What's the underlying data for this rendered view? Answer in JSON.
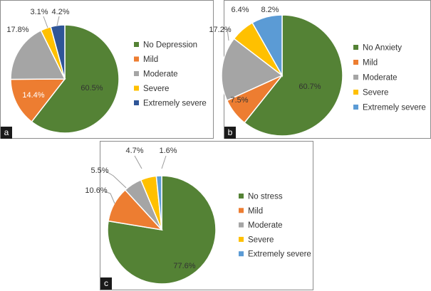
{
  "colors": {
    "green": "#548235",
    "orange": "#ED7D31",
    "gray": "#A5A5A5",
    "yellow": "#FFC000",
    "navy": "#2F5597",
    "lightblue": "#5B9BD5"
  },
  "chart_data": [
    {
      "type": "pie",
      "panel_label": "a",
      "legend_position": "right",
      "categories": [
        "No Depression",
        "Mild",
        "Moderate",
        "Severe",
        "Extremely severe"
      ],
      "values": [
        60.5,
        14.4,
        17.8,
        3.1,
        4.2
      ],
      "data_labels": [
        "60.5%",
        "14.4%",
        "17.8%",
        "3.1%",
        "4.2%"
      ],
      "colors": [
        "#548235",
        "#ED7D31",
        "#A5A5A5",
        "#FFC000",
        "#2F5597"
      ]
    },
    {
      "type": "pie",
      "panel_label": "b",
      "legend_position": "right",
      "categories": [
        "No Anxiety",
        "Mild",
        "Moderate",
        "Severe",
        "Extremely severe"
      ],
      "values": [
        60.7,
        7.5,
        17.2,
        6.4,
        8.2
      ],
      "data_labels": [
        "60.7%",
        "7.5%",
        "17.2%",
        "6.4%",
        "8.2%"
      ],
      "colors": [
        "#548235",
        "#ED7D31",
        "#A5A5A5",
        "#FFC000",
        "#5B9BD5"
      ]
    },
    {
      "type": "pie",
      "panel_label": "c",
      "legend_position": "right",
      "categories": [
        "No stress",
        "Mild",
        "Moderate",
        "Severe",
        "Extremely severe"
      ],
      "values": [
        77.6,
        10.6,
        5.5,
        4.7,
        1.6
      ],
      "data_labels": [
        "77.6%",
        "10.6%",
        "5.5%",
        "4.7%",
        "1.6%"
      ],
      "colors": [
        "#548235",
        "#ED7D31",
        "#A5A5A5",
        "#FFC000",
        "#5B9BD5"
      ]
    }
  ]
}
